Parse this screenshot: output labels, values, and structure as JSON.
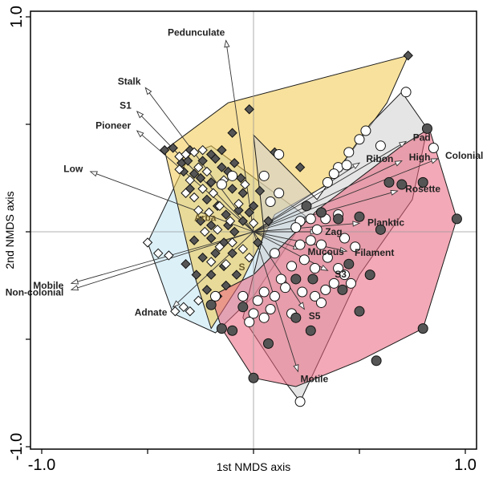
{
  "chart_data": {
    "type": "scatter",
    "xlabel": "1st NMDS axis",
    "ylabel": "2nd NMDS axis",
    "xlim": [
      -1.0,
      1.0
    ],
    "ylim": [
      -1.0,
      1.0
    ],
    "x_ticks": [
      -1.0,
      -0.5,
      0.0,
      0.5,
      1.0
    ],
    "y_ticks": [
      -1.0,
      -0.5,
      0.0,
      0.5,
      1.0
    ],
    "x_tick_labels": [
      "-1.0",
      "",
      "",
      "",
      "1.0"
    ],
    "y_tick_labels": [
      "-1.0",
      "",
      "",
      "",
      "1.0"
    ],
    "reference_lines": {
      "x": 0.0,
      "y": 0.0
    },
    "colors": {
      "yellow_hull": "#f2c84b",
      "grey_hull": "#cfcfcf",
      "pink_hull": "#e9637b",
      "blue_hull": "#bfe3f2",
      "orange_overlap": "#d97a3a",
      "dark_marker": "#555555",
      "light_marker": "#ffffff"
    },
    "group_labels": [
      {
        "text": "Arba",
        "x": -0.28,
        "y": 0.05
      },
      {
        "text": "S",
        "x": -0.07,
        "y": -0.18
      }
    ],
    "hulls": [
      {
        "id": "blue",
        "color": "#bfe3f2",
        "points": [
          [
            -0.5,
            -0.05
          ],
          [
            -0.3,
            0.36
          ],
          [
            -0.2,
            0.4
          ],
          [
            0.25,
            0.07
          ],
          [
            0.0,
            -0.3
          ],
          [
            -0.18,
            -0.47
          ],
          [
            -0.38,
            -0.38
          ]
        ]
      },
      {
        "id": "yellow",
        "color": "#f2c84b",
        "points": [
          [
            -0.42,
            0.38
          ],
          [
            -0.12,
            0.6
          ],
          [
            0.73,
            0.82
          ],
          [
            0.63,
            0.6
          ],
          [
            0.35,
            0.22
          ],
          [
            0.1,
            0.08
          ],
          [
            -0.05,
            -0.22
          ],
          [
            -0.2,
            -0.45
          ],
          [
            -0.28,
            -0.2
          ]
        ]
      },
      {
        "id": "grey",
        "color": "#cfcfcf",
        "points": [
          [
            0.0,
            0.45
          ],
          [
            0.3,
            0.15
          ],
          [
            0.55,
            0.5
          ],
          [
            0.7,
            0.65
          ],
          [
            0.82,
            0.48
          ],
          [
            0.75,
            0.15
          ],
          [
            0.5,
            -0.2
          ],
          [
            0.22,
            -0.79
          ],
          [
            0.15,
            -0.7
          ],
          [
            -0.05,
            -0.4
          ],
          [
            0.05,
            0.0
          ]
        ]
      },
      {
        "id": "pink",
        "color": "#e9637b",
        "points": [
          [
            -0.2,
            -0.3
          ],
          [
            -0.15,
            -0.45
          ],
          [
            0.0,
            -0.68
          ],
          [
            0.2,
            -0.72
          ],
          [
            0.5,
            -0.6
          ],
          [
            0.8,
            -0.45
          ],
          [
            0.96,
            0.06
          ],
          [
            0.83,
            0.48
          ],
          [
            0.7,
            0.4
          ],
          [
            0.3,
            0.1
          ],
          [
            0.0,
            -0.2
          ]
        ]
      }
    ],
    "vectors": [
      {
        "name": "Pedunculate",
        "x": -0.13,
        "y": 0.89
      },
      {
        "name": "Stalk",
        "x": -0.51,
        "y": 0.67
      },
      {
        "name": "S1",
        "x": -0.55,
        "y": 0.56
      },
      {
        "name": "Pioneer",
        "x": -0.55,
        "y": 0.47
      },
      {
        "name": "Low",
        "x": -0.77,
        "y": 0.28
      },
      {
        "name": "Mobile",
        "x": -0.86,
        "y": -0.24
      },
      {
        "name": "Non-colonial",
        "x": -0.86,
        "y": -0.27
      },
      {
        "name": "Adnate",
        "x": -0.38,
        "y": -0.35
      },
      {
        "name": "Ribon",
        "x": 0.5,
        "y": 0.32
      },
      {
        "name": "Pad",
        "x": 0.72,
        "y": 0.42
      },
      {
        "name": "High",
        "x": 0.7,
        "y": 0.33
      },
      {
        "name": "Colonial",
        "x": 0.87,
        "y": 0.34
      },
      {
        "name": "Rosette",
        "x": 0.68,
        "y": 0.19
      },
      {
        "name": "Planktic",
        "x": 0.5,
        "y": 0.04
      },
      {
        "name": "Zag",
        "x": 0.3,
        "y": 0.0
      },
      {
        "name": "Mucous",
        "x": 0.22,
        "y": -0.08
      },
      {
        "name": "Filament",
        "x": 0.44,
        "y": -0.09
      },
      {
        "name": "S3",
        "x": 0.35,
        "y": -0.18
      },
      {
        "name": "S5",
        "x": 0.24,
        "y": -0.36
      },
      {
        "name": "Motile",
        "x": 0.21,
        "y": -0.65
      }
    ],
    "series": [
      {
        "marker": "diamond-dark",
        "values": [
          [
            0.73,
            0.82
          ],
          [
            -0.02,
            0.57
          ],
          [
            -0.1,
            0.46
          ],
          [
            -0.42,
            0.38
          ],
          [
            -0.38,
            0.39
          ],
          [
            -0.35,
            0.35
          ],
          [
            -0.34,
            0.32
          ],
          [
            -0.3,
            0.38
          ],
          [
            -0.31,
            0.33
          ],
          [
            -0.28,
            0.27
          ],
          [
            -0.24,
            0.33
          ],
          [
            -0.2,
            0.36
          ],
          [
            -0.18,
            0.34
          ],
          [
            -0.25,
            0.25
          ],
          [
            -0.3,
            0.2
          ],
          [
            -0.2,
            0.23
          ],
          [
            -0.15,
            0.3
          ],
          [
            -0.12,
            0.28
          ],
          [
            -0.09,
            0.32
          ],
          [
            0.1,
            0.37
          ],
          [
            0.22,
            0.3
          ],
          [
            -0.1,
            0.2
          ],
          [
            -0.05,
            0.18
          ],
          [
            0.03,
            0.19
          ],
          [
            -0.22,
            0.15
          ],
          [
            -0.17,
            0.12
          ],
          [
            -0.13,
            0.08
          ],
          [
            -0.07,
            0.1
          ],
          [
            -0.02,
            0.09
          ],
          [
            -0.25,
            0.05
          ],
          [
            -0.2,
            0.03
          ],
          [
            -0.12,
            0.03
          ],
          [
            -0.05,
            0.05
          ],
          [
            -0.28,
            -0.04
          ],
          [
            -0.2,
            -0.03
          ],
          [
            -0.14,
            -0.05
          ],
          [
            -0.09,
            0.0
          ],
          [
            -0.24,
            -0.12
          ],
          [
            -0.18,
            -0.1
          ],
          [
            -0.1,
            -0.1
          ],
          [
            -0.27,
            -0.2
          ],
          [
            -0.2,
            -0.2
          ],
          [
            -0.14,
            -0.16
          ],
          [
            -0.22,
            -0.27
          ],
          [
            -0.17,
            -0.3
          ],
          [
            -0.13,
            -0.25
          ],
          [
            -0.08,
            -0.2
          ],
          [
            0.02,
            -0.05
          ],
          [
            0.07,
            0.05
          ],
          [
            -0.32,
            -0.15
          ],
          [
            -0.15,
            0.38
          ],
          [
            -0.06,
            0.25
          ],
          [
            0.0,
            0.12
          ],
          [
            -0.33,
            0.28
          ]
        ]
      },
      {
        "marker": "diamond-light",
        "values": [
          [
            -0.5,
            -0.05
          ],
          [
            -0.45,
            -0.1
          ],
          [
            -0.4,
            -0.11
          ],
          [
            -0.33,
            -0.35
          ],
          [
            -0.3,
            -0.37
          ],
          [
            -0.37,
            -0.37
          ],
          [
            -0.35,
            0.35
          ],
          [
            -0.32,
            0.36
          ],
          [
            -0.28,
            0.37
          ],
          [
            -0.24,
            0.38
          ],
          [
            -0.35,
            0.29
          ],
          [
            -0.3,
            0.24
          ],
          [
            -0.26,
            0.3
          ],
          [
            -0.22,
            0.28
          ],
          [
            -0.32,
            0.18
          ],
          [
            -0.28,
            0.16
          ],
          [
            -0.24,
            0.2
          ],
          [
            -0.19,
            0.18
          ],
          [
            -0.26,
            0.1
          ],
          [
            -0.21,
            0.09
          ],
          [
            -0.16,
            0.12
          ],
          [
            -0.23,
            0.0
          ],
          [
            -0.17,
            0.01
          ],
          [
            -0.11,
            0.05
          ],
          [
            -0.07,
            0.13
          ],
          [
            -0.16,
            -0.07
          ],
          [
            -0.1,
            -0.05
          ],
          [
            -0.05,
            -0.08
          ],
          [
            -0.2,
            -0.14
          ],
          [
            -0.13,
            -0.15
          ],
          [
            -0.02,
            -0.12
          ],
          [
            0.0,
            0.04
          ],
          [
            -0.26,
            -0.32
          ],
          [
            -0.04,
            0.22
          ],
          [
            -0.14,
            0.24
          ]
        ]
      },
      {
        "marker": "circle-light",
        "values": [
          [
            0.72,
            0.65
          ],
          [
            0.85,
            0.39
          ],
          [
            0.53,
            0.47
          ],
          [
            0.5,
            0.43
          ],
          [
            0.45,
            0.37
          ],
          [
            0.4,
            0.3
          ],
          [
            0.38,
            0.27
          ],
          [
            0.35,
            0.23
          ],
          [
            0.12,
            0.36
          ],
          [
            0.05,
            0.26
          ],
          [
            0.12,
            0.18
          ],
          [
            0.08,
            0.14
          ],
          [
            -0.1,
            0.26
          ],
          [
            -0.15,
            0.22
          ],
          [
            0.22,
            0.05
          ],
          [
            0.27,
            0.06
          ],
          [
            0.2,
            0.02
          ],
          [
            0.34,
            0.06
          ],
          [
            0.3,
            0.01
          ],
          [
            0.4,
            0.08
          ],
          [
            0.22,
            -0.06
          ],
          [
            0.27,
            -0.04
          ],
          [
            0.32,
            -0.06
          ],
          [
            0.43,
            -0.03
          ],
          [
            0.48,
            -0.07
          ],
          [
            0.18,
            -0.16
          ],
          [
            0.24,
            -0.13
          ],
          [
            0.29,
            -0.17
          ],
          [
            0.35,
            -0.12
          ],
          [
            0.4,
            -0.17
          ],
          [
            0.43,
            -0.2
          ],
          [
            0.46,
            -0.24
          ],
          [
            0.38,
            -0.24
          ],
          [
            0.13,
            -0.22
          ],
          [
            0.15,
            -0.26
          ],
          [
            0.23,
            -0.28
          ],
          [
            0.29,
            -0.3
          ],
          [
            0.34,
            -0.27
          ],
          [
            0.32,
            -0.33
          ],
          [
            0.1,
            -0.3
          ],
          [
            0.05,
            -0.28
          ],
          [
            0.02,
            -0.32
          ],
          [
            0.08,
            -0.36
          ],
          [
            0.0,
            -0.38
          ],
          [
            0.05,
            -0.4
          ],
          [
            0.18,
            -0.38
          ],
          [
            -0.18,
            -0.3
          ],
          [
            -0.05,
            -0.3
          ],
          [
            -0.02,
            -0.42
          ],
          [
            0.22,
            -0.79
          ],
          [
            0.44,
            0.31
          ],
          [
            0.6,
            0.4
          ],
          [
            0.1,
            -0.1
          ]
        ]
      },
      {
        "marker": "circle-dark",
        "values": [
          [
            0.82,
            0.48
          ],
          [
            0.96,
            0.06
          ],
          [
            0.8,
            0.23
          ],
          [
            0.64,
            0.23
          ],
          [
            0.7,
            0.22
          ],
          [
            0.5,
            0.07
          ],
          [
            0.4,
            0.06
          ],
          [
            0.32,
            0.09
          ],
          [
            0.25,
            0.12
          ],
          [
            0.6,
            0.01
          ],
          [
            0.45,
            -0.15
          ],
          [
            0.2,
            -0.22
          ],
          [
            0.28,
            -0.22
          ],
          [
            0.5,
            -0.37
          ],
          [
            0.8,
            -0.45
          ],
          [
            0.58,
            -0.6
          ],
          [
            0.27,
            -0.46
          ],
          [
            0.07,
            -0.52
          ],
          [
            0.0,
            -0.68
          ],
          [
            0.42,
            -0.27
          ],
          [
            -0.2,
            -0.34
          ],
          [
            -0.15,
            -0.45
          ],
          [
            -0.1,
            -0.46
          ],
          [
            -0.05,
            -0.35
          ],
          [
            0.2,
            -0.4
          ],
          [
            0.55,
            -0.2
          ]
        ]
      }
    ]
  }
}
